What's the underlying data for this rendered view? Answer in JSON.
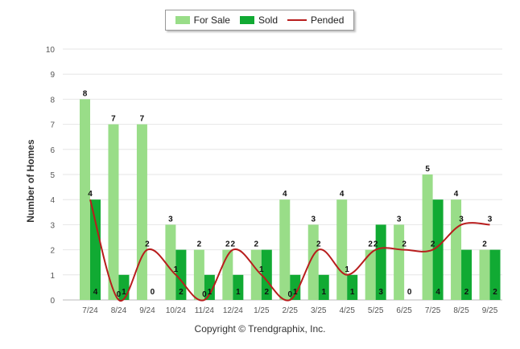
{
  "chart_data": {
    "type": "bar",
    "categories": [
      "7/24",
      "8/24",
      "9/24",
      "10/24",
      "11/24",
      "12/24",
      "1/25",
      "2/25",
      "3/25",
      "4/25",
      "5/25",
      "6/25",
      "7/25",
      "8/25",
      "9/25"
    ],
    "series": [
      {
        "name": "For Sale",
        "kind": "bar",
        "color": "#99dd88",
        "values": [
          8,
          7,
          7,
          3,
          2,
          2,
          2,
          4,
          3,
          4,
          2,
          3,
          5,
          4,
          2
        ],
        "labels": [
          "8",
          "7",
          "7",
          "3",
          "2",
          "2",
          "2",
          "4",
          "3",
          "4",
          "2",
          "3",
          "5",
          "4",
          "2"
        ]
      },
      {
        "name": "Sold",
        "kind": "bar",
        "color": "#11aa33",
        "values": [
          4,
          1,
          0,
          2,
          1,
          1,
          2,
          1,
          1,
          1,
          3,
          0,
          4,
          2,
          2
        ],
        "labels": [
          "4",
          "1",
          "0",
          "2",
          "1",
          "1",
          "2",
          "1",
          "1",
          "1",
          "3",
          "0",
          "4",
          "2",
          "2"
        ]
      },
      {
        "name": "Pended",
        "kind": "line",
        "color": "#b81d1d",
        "values": [
          4,
          0,
          2,
          1,
          0,
          2,
          1,
          0,
          2,
          1,
          2,
          2,
          2,
          3,
          3
        ],
        "labels": [
          "4",
          "0",
          "2",
          "1",
          "0",
          "2",
          "1",
          "0",
          "2",
          "1",
          "2",
          "2",
          "2",
          "3",
          "3"
        ]
      }
    ],
    "ylabel": "Number of Homes",
    "xlabel": "",
    "ylim": [
      0,
      10
    ],
    "yticks": [
      "0",
      "1",
      "2",
      "3",
      "4",
      "5",
      "6",
      "7",
      "8",
      "9",
      "10"
    ],
    "grid": true,
    "legend": "top-center"
  },
  "footer": {
    "copyright": "Copyright © Trendgraphix, Inc."
  }
}
